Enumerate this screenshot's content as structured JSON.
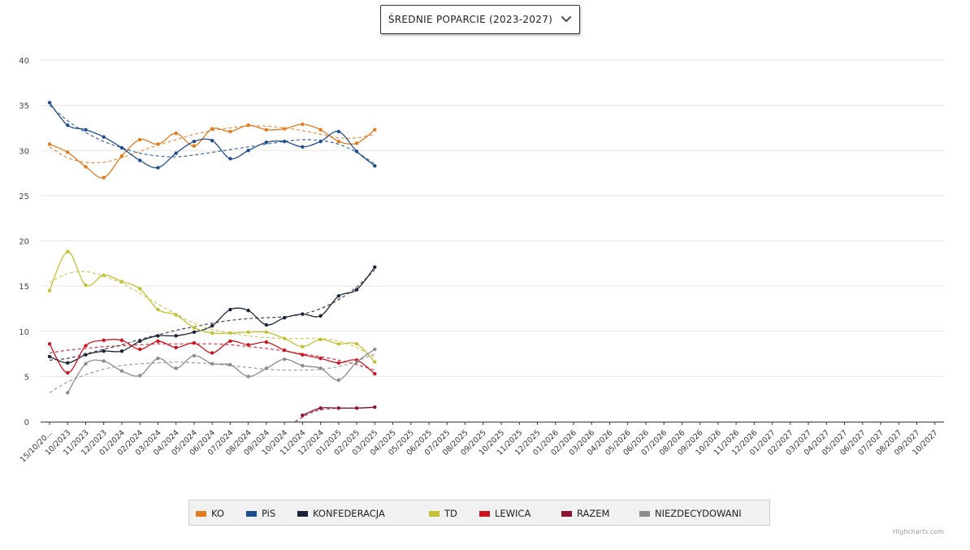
{
  "selector": {
    "label": "ŚREDNIE POPARCIE (2023-2027)",
    "icon": "chevron-down-icon"
  },
  "credits": "Highcharts.com",
  "chart_data": {
    "type": "line",
    "title": "",
    "xlabel": "",
    "ylabel": "",
    "ylim": [
      0,
      40
    ],
    "yticks": [
      0,
      5,
      10,
      15,
      20,
      25,
      30,
      35,
      40
    ],
    "grid": true,
    "legend_position": "bottom",
    "categories": [
      "15/10/20...",
      "10/2023",
      "11/2023",
      "12/2023",
      "01/2024",
      "02/2024",
      "03/2024",
      "04/2024",
      "05/2024",
      "06/2024",
      "07/2024",
      "08/2024",
      "09/2024",
      "10/2024",
      "11/2024",
      "12/2024",
      "01/2025",
      "02/2025",
      "03/2025",
      "04/2025",
      "05/2025",
      "06/2025",
      "07/2025",
      "08/2025",
      "09/2025",
      "10/2025",
      "11/2025",
      "12/2025",
      "01/2026",
      "02/2026",
      "03/2026",
      "04/2026",
      "05/2026",
      "06/2026",
      "07/2026",
      "08/2026",
      "09/2026",
      "10/2026",
      "11/2026",
      "12/2026",
      "01/2027",
      "02/2027",
      "03/2027",
      "04/2027",
      "05/2027",
      "06/2027",
      "07/2027",
      "08/2027",
      "09/2027",
      "10/2027"
    ],
    "series": [
      {
        "name": "KO",
        "color": "#E07B1E",
        "points": [
          [
            0,
            30.7
          ],
          [
            1,
            29.8
          ],
          [
            2,
            28.2
          ],
          [
            3,
            27.0
          ],
          [
            4,
            29.4
          ],
          [
            5,
            31.2
          ],
          [
            6,
            30.7
          ],
          [
            7,
            31.9
          ],
          [
            8,
            30.5
          ],
          [
            9,
            32.4
          ],
          [
            10,
            32.1
          ],
          [
            11,
            32.8
          ],
          [
            12,
            32.3
          ],
          [
            13,
            32.4
          ],
          [
            14,
            32.9
          ],
          [
            15,
            32.3
          ],
          [
            16,
            31.0
          ],
          [
            17,
            30.8
          ],
          [
            18,
            32.3
          ]
        ],
        "trend": [
          [
            0,
            30.4
          ],
          [
            1,
            29.2
          ],
          [
            2,
            28.7
          ],
          [
            3,
            28.7
          ],
          [
            4,
            29.2
          ],
          [
            5,
            29.9
          ],
          [
            6,
            30.6
          ],
          [
            7,
            31.2
          ],
          [
            8,
            31.8
          ],
          [
            9,
            32.2
          ],
          [
            10,
            32.5
          ],
          [
            11,
            32.7
          ],
          [
            12,
            32.7
          ],
          [
            13,
            32.5
          ],
          [
            14,
            32.2
          ],
          [
            15,
            31.8
          ],
          [
            16,
            31.4
          ],
          [
            17,
            31.4
          ],
          [
            18,
            31.8
          ]
        ]
      },
      {
        "name": "PiS",
        "color": "#1F4E8C",
        "points": [
          [
            0,
            35.3
          ],
          [
            1,
            32.8
          ],
          [
            2,
            32.3
          ],
          [
            3,
            31.5
          ],
          [
            4,
            30.3
          ],
          [
            5,
            28.9
          ],
          [
            6,
            28.1
          ],
          [
            7,
            29.7
          ],
          [
            8,
            31.0
          ],
          [
            9,
            31.1
          ],
          [
            10,
            29.1
          ],
          [
            11,
            30.0
          ],
          [
            12,
            30.9
          ],
          [
            13,
            31.0
          ],
          [
            14,
            30.4
          ],
          [
            15,
            31.0
          ],
          [
            16,
            32.1
          ],
          [
            17,
            29.9
          ],
          [
            18,
            28.3
          ]
        ],
        "trend": [
          [
            0,
            35.0
          ],
          [
            1,
            33.3
          ],
          [
            2,
            32.0
          ],
          [
            3,
            31.0
          ],
          [
            4,
            30.3
          ],
          [
            5,
            29.7
          ],
          [
            6,
            29.4
          ],
          [
            7,
            29.3
          ],
          [
            8,
            29.5
          ],
          [
            9,
            29.8
          ],
          [
            10,
            30.1
          ],
          [
            11,
            30.4
          ],
          [
            12,
            30.7
          ],
          [
            13,
            31.0
          ],
          [
            14,
            31.2
          ],
          [
            15,
            31.1
          ],
          [
            16,
            30.7
          ],
          [
            17,
            29.8
          ],
          [
            18,
            28.5
          ]
        ]
      },
      {
        "name": "KONFEDERACJA",
        "color": "#1A2438",
        "points": [
          [
            0,
            7.2
          ],
          [
            1,
            6.5
          ],
          [
            2,
            7.4
          ],
          [
            3,
            7.8
          ],
          [
            4,
            7.8
          ],
          [
            5,
            8.9
          ],
          [
            6,
            9.5
          ],
          [
            7,
            9.5
          ],
          [
            8,
            9.9
          ],
          [
            9,
            10.6
          ],
          [
            10,
            12.4
          ],
          [
            11,
            12.3
          ],
          [
            12,
            10.7
          ],
          [
            13,
            11.5
          ],
          [
            14,
            11.9
          ],
          [
            15,
            11.7
          ],
          [
            16,
            13.9
          ],
          [
            17,
            14.6
          ],
          [
            18,
            17.1
          ]
        ],
        "trend": [
          [
            0,
            6.8
          ],
          [
            1,
            7.0
          ],
          [
            2,
            7.5
          ],
          [
            3,
            8.0
          ],
          [
            4,
            8.5
          ],
          [
            5,
            9.1
          ],
          [
            6,
            9.6
          ],
          [
            7,
            10.1
          ],
          [
            8,
            10.5
          ],
          [
            9,
            10.9
          ],
          [
            10,
            11.2
          ],
          [
            11,
            11.4
          ],
          [
            12,
            11.5
          ],
          [
            13,
            11.6
          ],
          [
            14,
            11.9
          ],
          [
            15,
            12.5
          ],
          [
            16,
            13.5
          ],
          [
            17,
            14.9
          ],
          [
            18,
            16.8
          ]
        ]
      },
      {
        "name": "TD",
        "color": "#C3C034",
        "points": [
          [
            0,
            14.5
          ],
          [
            1,
            18.8
          ],
          [
            2,
            15.1
          ],
          [
            3,
            16.2
          ],
          [
            4,
            15.5
          ],
          [
            5,
            14.7
          ],
          [
            6,
            12.4
          ],
          [
            7,
            11.8
          ],
          [
            8,
            10.4
          ],
          [
            9,
            9.8
          ],
          [
            10,
            9.8
          ],
          [
            11,
            9.9
          ],
          [
            12,
            9.9
          ],
          [
            13,
            9.2
          ],
          [
            14,
            8.3
          ],
          [
            15,
            9.1
          ],
          [
            16,
            8.6
          ],
          [
            17,
            8.6
          ],
          [
            18,
            6.6
          ]
        ],
        "trend": [
          [
            0,
            15.4
          ],
          [
            1,
            16.4
          ],
          [
            2,
            16.6
          ],
          [
            3,
            16.1
          ],
          [
            4,
            15.3
          ],
          [
            5,
            14.2
          ],
          [
            6,
            13.0
          ],
          [
            7,
            11.9
          ],
          [
            8,
            10.9
          ],
          [
            9,
            10.2
          ],
          [
            10,
            9.8
          ],
          [
            11,
            9.5
          ],
          [
            12,
            9.3
          ],
          [
            13,
            9.2
          ],
          [
            14,
            9.2
          ],
          [
            15,
            9.2
          ],
          [
            16,
            8.9
          ],
          [
            17,
            8.2
          ],
          [
            18,
            7.1
          ]
        ]
      },
      {
        "name": "LEWICA",
        "color": "#CC1420",
        "points": [
          [
            0,
            8.6
          ],
          [
            1,
            5.4
          ],
          [
            2,
            8.4
          ],
          [
            3,
            9.0
          ],
          [
            4,
            9.0
          ],
          [
            5,
            8.0
          ],
          [
            6,
            8.9
          ],
          [
            7,
            8.2
          ],
          [
            8,
            8.7
          ],
          [
            9,
            7.6
          ],
          [
            10,
            8.9
          ],
          [
            11,
            8.5
          ],
          [
            12,
            8.8
          ],
          [
            13,
            7.9
          ],
          [
            14,
            7.4
          ],
          [
            15,
            7.0
          ],
          [
            16,
            6.5
          ],
          [
            17,
            6.8
          ],
          [
            18,
            5.3
          ]
        ],
        "trend": [
          [
            0,
            7.6
          ],
          [
            1,
            7.9
          ],
          [
            2,
            8.1
          ],
          [
            3,
            8.3
          ],
          [
            4,
            8.4
          ],
          [
            5,
            8.5
          ],
          [
            6,
            8.6
          ],
          [
            7,
            8.6
          ],
          [
            8,
            8.6
          ],
          [
            9,
            8.6
          ],
          [
            10,
            8.5
          ],
          [
            11,
            8.3
          ],
          [
            12,
            8.1
          ],
          [
            13,
            7.8
          ],
          [
            14,
            7.5
          ],
          [
            15,
            7.2
          ],
          [
            16,
            6.8
          ],
          [
            17,
            6.3
          ],
          [
            18,
            5.7
          ]
        ]
      },
      {
        "name": "RAZEM",
        "color": "#8B1230",
        "points": [
          [
            14,
            0.7
          ],
          [
            15,
            1.5
          ],
          [
            16,
            1.5
          ],
          [
            17,
            1.5
          ],
          [
            18,
            1.6
          ]
        ],
        "trend": [
          [
            13.6,
            0.0
          ],
          [
            14,
            0.5
          ],
          [
            14.5,
            1.0
          ],
          [
            15,
            1.3
          ],
          [
            16,
            1.5
          ],
          [
            17,
            1.5
          ],
          [
            18,
            1.6
          ]
        ]
      },
      {
        "name": "NIEZDECYDOWANI",
        "color": "#8C8C8C",
        "points": [
          [
            1,
            3.2
          ],
          [
            2,
            6.4
          ],
          [
            3,
            6.7
          ],
          [
            4,
            5.6
          ],
          [
            5,
            5.1
          ],
          [
            6,
            7.0
          ],
          [
            7,
            5.9
          ],
          [
            8,
            7.3
          ],
          [
            9,
            6.4
          ],
          [
            10,
            6.3
          ],
          [
            11,
            5.0
          ],
          [
            12,
            5.9
          ],
          [
            13,
            6.9
          ],
          [
            14,
            6.2
          ],
          [
            15,
            5.9
          ],
          [
            16,
            4.6
          ],
          [
            17,
            6.6
          ],
          [
            18,
            8.0
          ]
        ],
        "trend": [
          [
            0,
            3.2
          ],
          [
            1,
            4.4
          ],
          [
            2,
            5.2
          ],
          [
            3,
            5.8
          ],
          [
            4,
            6.2
          ],
          [
            5,
            6.4
          ],
          [
            6,
            6.5
          ],
          [
            7,
            6.6
          ],
          [
            8,
            6.5
          ],
          [
            9,
            6.4
          ],
          [
            10,
            6.2
          ],
          [
            11,
            6.0
          ],
          [
            12,
            5.8
          ],
          [
            13,
            5.7
          ],
          [
            14,
            5.7
          ],
          [
            15,
            5.8
          ],
          [
            16,
            6.1
          ],
          [
            17,
            6.7
          ],
          [
            18,
            7.5
          ]
        ]
      }
    ]
  }
}
